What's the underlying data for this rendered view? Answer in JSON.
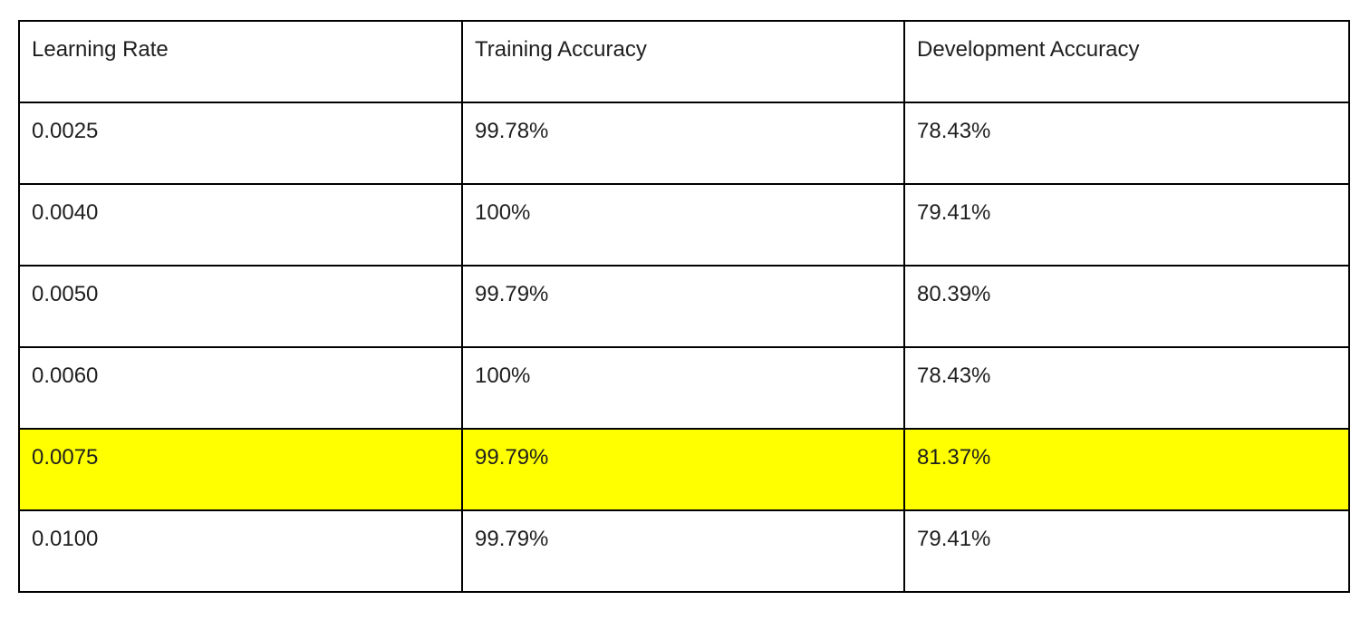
{
  "table": {
    "headers": [
      "Learning Rate",
      "Training Accuracy",
      "Development Accuracy"
    ],
    "rows": [
      {
        "learning_rate": "0.0025",
        "training_accuracy": "99.78%",
        "development_accuracy": "78.43%"
      },
      {
        "learning_rate": "0.0040",
        "training_accuracy": "100%",
        "development_accuracy": "79.41%"
      },
      {
        "learning_rate": "0.0050",
        "training_accuracy": "99.79%",
        "development_accuracy": "80.39%"
      },
      {
        "learning_rate": "0.0060",
        "training_accuracy": "100%",
        "development_accuracy": "78.43%"
      },
      {
        "learning_rate": "0.0075",
        "training_accuracy": "99.79%",
        "development_accuracy": "81.37%"
      },
      {
        "learning_rate": "0.0100",
        "training_accuracy": "99.79%",
        "development_accuracy": "79.41%"
      }
    ],
    "highlight_color": "#ffff00",
    "border_color": "#000000"
  }
}
